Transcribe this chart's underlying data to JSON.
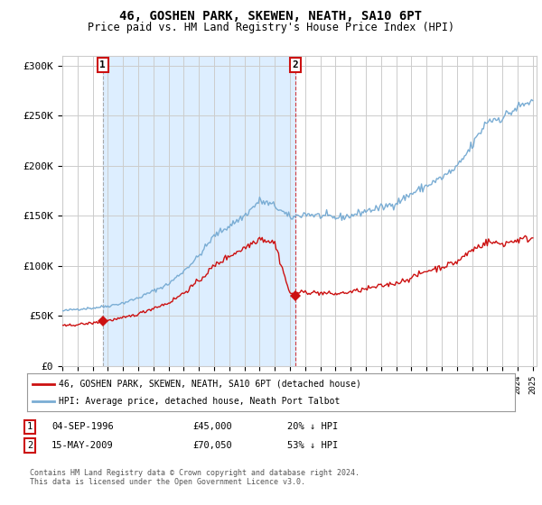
{
  "title": "46, GOSHEN PARK, SKEWEN, NEATH, SA10 6PT",
  "subtitle": "Price paid vs. HM Land Registry's House Price Index (HPI)",
  "background_color": "#ffffff",
  "plot_bg_color": "#ffffff",
  "grid_color": "#cccccc",
  "hpi_color": "#7aadd4",
  "price_color": "#cc1111",
  "legend_entry1": "46, GOSHEN PARK, SKEWEN, NEATH, SA10 6PT (detached house)",
  "legend_entry2": "HPI: Average price, detached house, Neath Port Talbot",
  "table_row1": [
    "1",
    "04-SEP-1996",
    "£45,000",
    "20% ↓ HPI"
  ],
  "table_row2": [
    "2",
    "15-MAY-2009",
    "£70,050",
    "53% ↓ HPI"
  ],
  "footer": "Contains HM Land Registry data © Crown copyright and database right 2024.\nThis data is licensed under the Open Government Licence v3.0.",
  "ylim": [
    0,
    310000
  ],
  "yticks": [
    0,
    50000,
    100000,
    150000,
    200000,
    250000,
    300000
  ],
  "ytick_labels": [
    "£0",
    "£50K",
    "£100K",
    "£150K",
    "£200K",
    "£250K",
    "£300K"
  ],
  "sale1_x": 1996.67,
  "sale1_y": 45000,
  "sale2_x": 2009.37,
  "sale2_y": 70050,
  "xmin": 1994.0,
  "xmax": 2025.25,
  "annotation1_label": "1",
  "annotation2_label": "2",
  "shade_color": "#ddeeff",
  "hatch_color": "#cccccc"
}
